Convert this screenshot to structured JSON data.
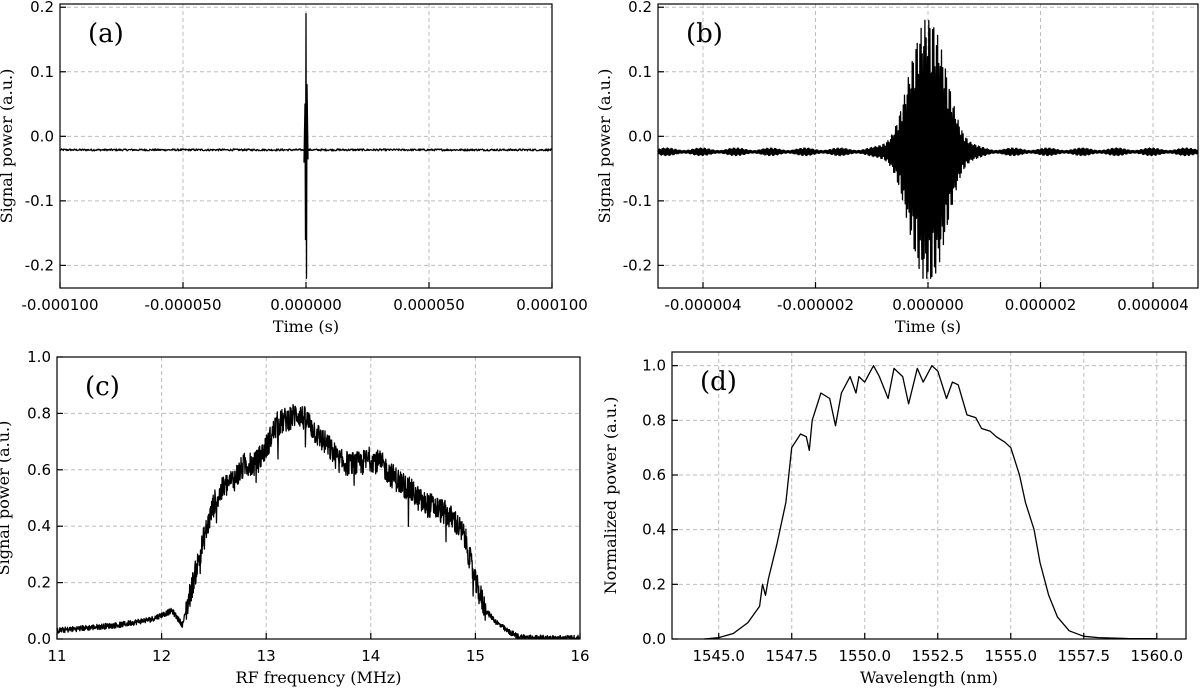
{
  "chart_data": [
    {
      "panel_label": "(a)",
      "type": "line",
      "xlabel": "Time (s)",
      "ylabel": "Signal power (a.u.)",
      "xlim": [
        -0.0001,
        0.0001
      ],
      "ylim": [
        -0.235,
        0.205
      ],
      "xticks": [
        -0.0001,
        -5e-05,
        0.0,
        5e-05,
        0.0001
      ],
      "xtick_labels": [
        "-0.000100",
        "-0.000050",
        "0.000000",
        "0.000050",
        "0.000100"
      ],
      "yticks": [
        -0.2,
        -0.1,
        0.0,
        0.1,
        0.2
      ],
      "ytick_labels": [
        "-0.2",
        "-0.1",
        "0.0",
        "0.1",
        "0.2"
      ],
      "grid": true,
      "series": [
        {
          "description": "interferogram",
          "x": [
            -0.0001,
            -5e-05,
            -3e-06,
            -1e-06,
            -4e-07,
            -2e-07,
            0.0,
            2e-07,
            4e-07,
            1e-06,
            3e-06,
            5e-05,
            0.0001
          ],
          "y": [
            -0.021,
            -0.021,
            -0.025,
            -0.035,
            0.05,
            -0.16,
            0.19,
            -0.22,
            0.08,
            -0.03,
            -0.024,
            -0.021,
            -0.021
          ]
        }
      ]
    },
    {
      "panel_label": "(b)",
      "type": "line",
      "xlabel": "Time (s)",
      "ylabel": "Signal power (a.u.)",
      "xlim": [
        -4.8e-06,
        4.8e-06
      ],
      "ylim": [
        -0.235,
        0.205
      ],
      "xticks": [
        -4e-06,
        -2e-06,
        0.0,
        2e-06,
        4e-06
      ],
      "xtick_labels": [
        "-0.000004",
        "-0.000002",
        "0.000000",
        "0.000002",
        "0.000004"
      ],
      "yticks": [
        -0.2,
        -0.1,
        0.0,
        0.1,
        0.2
      ],
      "ytick_labels": [
        "-0.2",
        "-0.1",
        "0.0",
        "0.1",
        "0.2"
      ],
      "grid": true,
      "series": [
        {
          "description": "zoomed interferogram",
          "x": [
            -4.8e-06,
            -3e-06,
            -1.5e-06,
            -8e-07,
            -4e-07,
            -2e-07,
            0.0,
            2e-07,
            4e-07,
            8e-07,
            1.5e-06,
            3e-06,
            4.8e-06
          ],
          "y": [
            -0.024,
            -0.024,
            -0.03,
            0.0,
            0.05,
            0.15,
            0.19,
            -0.22,
            -0.15,
            -0.05,
            -0.03,
            -0.024,
            -0.024
          ],
          "envelope_center": 0.0,
          "envelope_halfwidth": 8e-07,
          "peak_max": 0.19,
          "peak_min": -0.22,
          "baseline": -0.024
        }
      ]
    },
    {
      "panel_label": "(c)",
      "type": "line",
      "xlabel": "RF frequency (MHz)",
      "ylabel": "Signal power (a.u.)",
      "xlim": [
        11,
        16
      ],
      "ylim": [
        0.0,
        1.0
      ],
      "xticks": [
        11,
        12,
        13,
        14,
        15,
        16
      ],
      "xtick_labels": [
        "11",
        "12",
        "13",
        "14",
        "15",
        "16"
      ],
      "yticks": [
        0.0,
        0.2,
        0.4,
        0.6,
        0.8,
        1.0
      ],
      "ytick_labels": [
        "0.0",
        "0.2",
        "0.4",
        "0.6",
        "0.8",
        "1.0"
      ],
      "grid": true,
      "series": [
        {
          "description": "RF spectrum",
          "x": [
            11.0,
            11.3,
            11.6,
            11.9,
            12.1,
            12.2,
            12.3,
            12.4,
            12.5,
            12.6,
            12.7,
            12.8,
            12.9,
            13.0,
            13.1,
            13.2,
            13.3,
            13.4,
            13.5,
            13.6,
            13.7,
            13.8,
            13.9,
            14.0,
            14.1,
            14.2,
            14.3,
            14.4,
            14.5,
            14.6,
            14.7,
            14.8,
            14.9,
            15.0,
            15.1,
            15.2,
            15.3,
            15.4,
            15.5,
            15.7,
            16.0
          ],
          "y": [
            0.03,
            0.04,
            0.05,
            0.07,
            0.1,
            0.05,
            0.2,
            0.35,
            0.48,
            0.54,
            0.57,
            0.62,
            0.62,
            0.68,
            0.76,
            0.78,
            0.8,
            0.77,
            0.72,
            0.68,
            0.63,
            0.62,
            0.62,
            0.64,
            0.62,
            0.58,
            0.55,
            0.52,
            0.48,
            0.47,
            0.45,
            0.42,
            0.36,
            0.2,
            0.1,
            0.06,
            0.03,
            0.01,
            0.005,
            0.003,
            0.003
          ]
        }
      ]
    },
    {
      "panel_label": "(d)",
      "type": "line",
      "xlabel": "Wavelength (nm)",
      "ylabel": "Normalized power (a.u.)",
      "xlim": [
        1543.4,
        1561.0
      ],
      "ylim": [
        0.0,
        1.05
      ],
      "xticks": [
        1545.0,
        1547.5,
        1550.0,
        1552.5,
        1555.0,
        1557.5,
        1560.0
      ],
      "xtick_labels": [
        "1545.0",
        "1547.5",
        "1550.0",
        "1552.5",
        "1555.0",
        "1557.5",
        "1560.0"
      ],
      "yticks": [
        0.0,
        0.2,
        0.4,
        0.6,
        0.8,
        1.0
      ],
      "ytick_labels": [
        "0.0",
        "0.2",
        "0.4",
        "0.6",
        "0.8",
        "1.0"
      ],
      "grid": true,
      "series": [
        {
          "description": "optical spectrum",
          "x": [
            1544.5,
            1545.0,
            1545.5,
            1546.0,
            1546.4,
            1546.5,
            1546.6,
            1546.7,
            1547.0,
            1547.3,
            1547.5,
            1547.8,
            1548.0,
            1548.1,
            1548.2,
            1548.5,
            1548.8,
            1549.0,
            1549.2,
            1549.5,
            1549.7,
            1549.8,
            1550.0,
            1550.3,
            1550.5,
            1550.8,
            1551.0,
            1551.3,
            1551.5,
            1551.8,
            1552.0,
            1552.3,
            1552.5,
            1552.8,
            1553.0,
            1553.2,
            1553.5,
            1553.8,
            1554.0,
            1554.3,
            1554.5,
            1554.8,
            1555.0,
            1555.3,
            1555.5,
            1555.8,
            1556.0,
            1556.3,
            1556.6,
            1557.0,
            1557.5,
            1558.0,
            1559.0,
            1560.0
          ],
          "y": [
            0.0,
            0.005,
            0.02,
            0.06,
            0.12,
            0.2,
            0.16,
            0.22,
            0.35,
            0.5,
            0.7,
            0.75,
            0.74,
            0.69,
            0.8,
            0.9,
            0.88,
            0.78,
            0.9,
            0.96,
            0.9,
            0.96,
            0.94,
            1.0,
            0.96,
            0.88,
            0.99,
            0.96,
            0.86,
            0.99,
            0.94,
            1.0,
            0.98,
            0.88,
            0.94,
            0.93,
            0.82,
            0.81,
            0.77,
            0.76,
            0.74,
            0.72,
            0.7,
            0.6,
            0.5,
            0.4,
            0.28,
            0.16,
            0.08,
            0.03,
            0.01,
            0.005,
            0.002,
            0.001
          ]
        }
      ]
    }
  ]
}
